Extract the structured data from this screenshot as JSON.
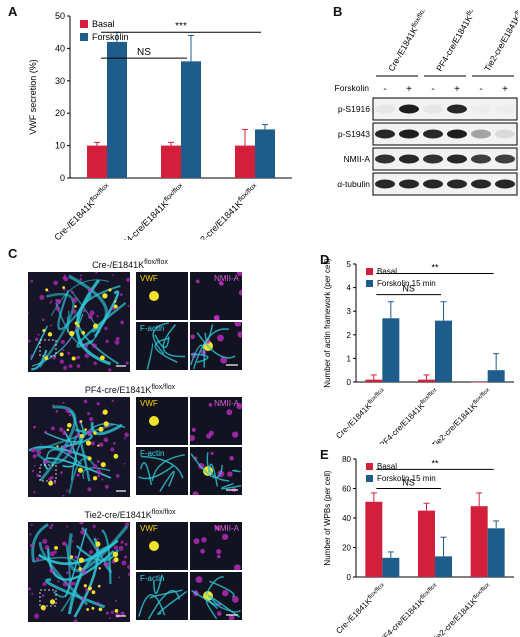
{
  "panels": {
    "A": {
      "letter": "A"
    },
    "B": {
      "letter": "B"
    },
    "C": {
      "letter": "C"
    },
    "D": {
      "letter": "D"
    },
    "E": {
      "letter": "E"
    }
  },
  "colors": {
    "basal": "#d21f3c",
    "forskolin": "#1e5c8c",
    "cyan": "#2ec6d6",
    "magenta": "#c02bc4",
    "yellow": "#f2e22a"
  },
  "categories": [
    "Cre-/E1841Kflox/flox",
    "PF4-cre/E1841Kflox/flox",
    "Tie2-cre/E1841Kflox/flox"
  ],
  "category_parts": [
    {
      "base": "Cre-/E1841K",
      "sup": "flox/flox"
    },
    {
      "base": "PF4-cre/E1841K",
      "sup": "flox/flox"
    },
    {
      "base": "Tie2-cre/E1841K",
      "sup": "flox/flox"
    }
  ],
  "chart_data": [
    {
      "type": "bar",
      "panel": "A",
      "ylabel": "VWF secretion (%)",
      "ylim": [
        0,
        50
      ],
      "yticks": [
        0,
        10,
        20,
        30,
        40,
        50
      ],
      "categories": [
        "Cre-/E1841Kflox/flox",
        "PF4-cre/E1841Kflox/flox",
        "Tie2-cre/E1841Kflox/flox"
      ],
      "series": [
        {
          "name": "Basal",
          "values": [
            10,
            10,
            10
          ],
          "errors": [
            1,
            1,
            5
          ]
        },
        {
          "name": "Forskolin",
          "values": [
            42,
            36,
            15
          ],
          "errors": [
            3,
            8,
            1.5
          ]
        }
      ],
      "legend": "top-left",
      "annotations": [
        {
          "text": "NS",
          "from": 0,
          "to": 1,
          "level": 37
        },
        {
          "text": "***",
          "from": 0,
          "to": 2,
          "level": 45
        }
      ]
    },
    {
      "type": "bar",
      "panel": "D",
      "ylabel": "Number of actin framework (per cell)",
      "ylim": [
        0,
        5
      ],
      "yticks": [
        0,
        1,
        2,
        3,
        4,
        5
      ],
      "categories": [
        "Cre-/E1841Kflox/flox",
        "PF4-cre/E1841Kflox/flox",
        "Tie2-cre/E1841Kflox/flox"
      ],
      "series": [
        {
          "name": "Basal",
          "values": [
            0.1,
            0.1,
            0
          ],
          "errors": [
            0.2,
            0.2,
            0
          ]
        },
        {
          "name": "Forskolin 15 min",
          "values": [
            2.7,
            2.6,
            0.5
          ],
          "errors": [
            0.7,
            0.8,
            0.7
          ]
        }
      ],
      "legend": "top-left",
      "annotations": [
        {
          "text": "NS",
          "from": 0,
          "to": 1,
          "level": 3.7
        },
        {
          "text": "**",
          "from": 0,
          "to": 2,
          "level": 4.6
        }
      ]
    },
    {
      "type": "bar",
      "panel": "E",
      "ylabel": "Number of WPBs (per cell)",
      "ylim": [
        0,
        80
      ],
      "yticks": [
        0,
        20,
        40,
        60,
        80
      ],
      "categories": [
        "Cre-/E1841Kflox/flox",
        "PF4-cre/E1841Kflox/flox",
        "Tie2-cre/E1841Kflox/flox"
      ],
      "series": [
        {
          "name": "Basal",
          "values": [
            51,
            45,
            48
          ],
          "errors": [
            6,
            5,
            9
          ]
        },
        {
          "name": "Forskolin 15 min",
          "values": [
            13,
            14,
            33
          ],
          "errors": [
            4,
            13,
            5
          ]
        }
      ],
      "legend": "top-left",
      "annotations": [
        {
          "text": "NS",
          "from": 0,
          "to": 1,
          "level": 60
        },
        {
          "text": "**",
          "from": 0,
          "to": 2,
          "level": 73
        }
      ]
    }
  ],
  "blot": {
    "treatment_label": "Forskolin",
    "signs": [
      "-",
      "+",
      "-",
      "+",
      "-",
      "+"
    ],
    "rows": [
      "p-S1916",
      "p-S1943",
      "NMII-A",
      "α-tubulin"
    ]
  },
  "micro": {
    "rows": [
      {
        "title_base": "Cre-/E1841K",
        "title_sup": "flox/flox"
      },
      {
        "title_base": "PF4-cre/E1841K",
        "title_sup": "flox/flox"
      },
      {
        "title_base": "Tie2-cre/E1841K",
        "title_sup": "flox/flox"
      }
    ],
    "tile_labels": {
      "vwf": "VWF",
      "nmii": "NMII-A",
      "factin": "F-actin"
    }
  }
}
